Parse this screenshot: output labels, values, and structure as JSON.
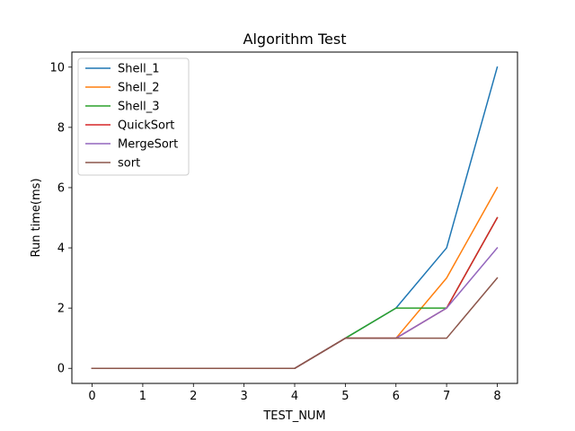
{
  "chart_data": {
    "type": "line",
    "title": "Algorithm Test",
    "xlabel": "TEST_NUM",
    "ylabel": "Run time(ms)",
    "xlim": [
      -0.4,
      8.4
    ],
    "ylim": [
      -0.5,
      10.5
    ],
    "xticks": [
      0,
      1,
      2,
      3,
      4,
      5,
      6,
      7,
      8
    ],
    "yticks": [
      0,
      2,
      4,
      6,
      8,
      10
    ],
    "grid": false,
    "legend_position": "top-left",
    "x": [
      0,
      1,
      2,
      3,
      4,
      5,
      6,
      7,
      8
    ],
    "series": [
      {
        "name": "Shell_1",
        "color": "#1f77b4",
        "values": [
          0,
          0,
          0,
          0,
          0,
          1,
          2,
          4,
          10
        ]
      },
      {
        "name": "Shell_2",
        "color": "#ff7f0e",
        "values": [
          0,
          0,
          0,
          0,
          0,
          1,
          1,
          3,
          6
        ]
      },
      {
        "name": "Shell_3",
        "color": "#2ca02c",
        "values": [
          0,
          0,
          0,
          0,
          0,
          1,
          2,
          2,
          5
        ]
      },
      {
        "name": "QuickSort",
        "color": "#d62728",
        "values": [
          0,
          0,
          0,
          0,
          0,
          1,
          1,
          2,
          5
        ]
      },
      {
        "name": "MergeSort",
        "color": "#9467bd",
        "values": [
          0,
          0,
          0,
          0,
          0,
          1,
          1,
          2,
          4
        ]
      },
      {
        "name": "sort",
        "color": "#8c564b",
        "values": [
          0,
          0,
          0,
          0,
          0,
          1,
          1,
          1,
          3
        ]
      }
    ]
  }
}
